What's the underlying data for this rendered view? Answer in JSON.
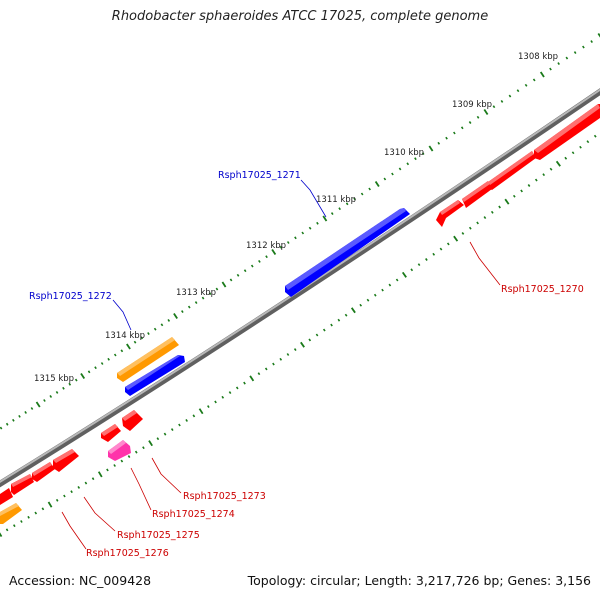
{
  "title": "Rhodobacter sphaeroides ATCC 17025, complete genome",
  "accession": "Accession: NC_009428",
  "genome_info": "Topology: circular; Length: 3,217,726 bp; Genes: 3,156",
  "ticks": [
    "1308 kbp",
    "1309 kbp",
    "1310 kbp",
    "1311 kbp",
    "1312 kbp",
    "1313 kbp",
    "1314 kbp",
    "1315 kbp"
  ],
  "gene_labels": {
    "g1271": "Rsph17025_1271",
    "g1272": "Rsph17025_1272",
    "g1270": "Rsph17025_1270",
    "g1273": "Rsph17025_1273",
    "g1274": "Rsph17025_1274",
    "g1275": "Rsph17025_1275",
    "g1276": "Rsph17025_1276"
  },
  "colors": {
    "forward_label": "#0000cc",
    "reverse_label": "#cc0000",
    "gene_red": "#ff0000",
    "gene_blue": "#0000ff",
    "gene_orange": "#ff9900",
    "gene_magenta": "#ff33aa",
    "backbone": "#808080",
    "tick_dots": "#1a7a1a"
  }
}
